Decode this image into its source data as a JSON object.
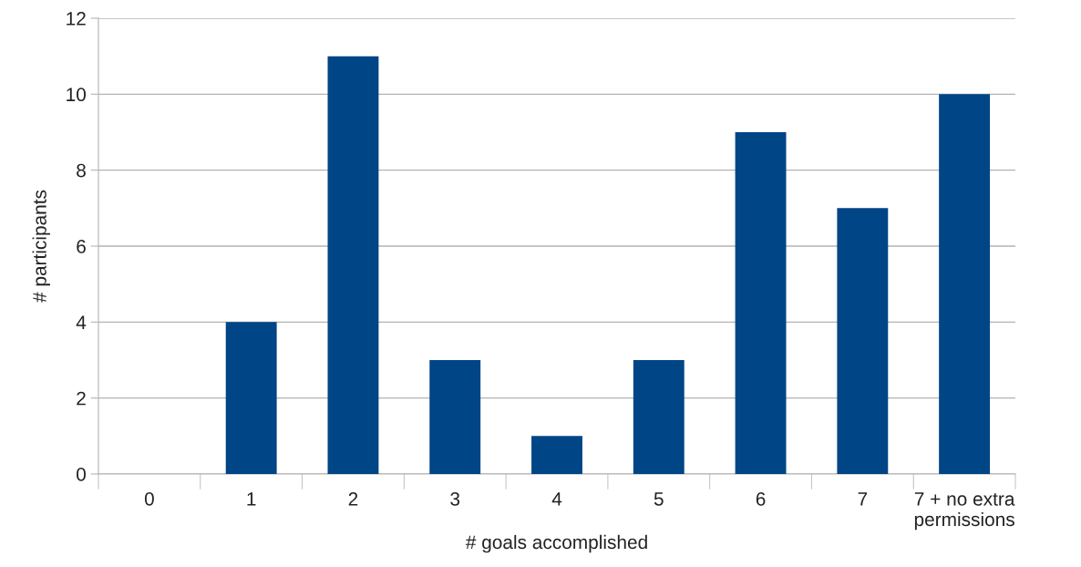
{
  "chart_data": {
    "type": "bar",
    "xlabel": "# goals accomplished",
    "ylabel": "# participants",
    "categories": [
      "0",
      "1",
      "2",
      "3",
      "4",
      "5",
      "6",
      "7",
      "7 + no extra\npermissions"
    ],
    "values": [
      0,
      4,
      11,
      3,
      1,
      3,
      9,
      7,
      10
    ],
    "color": "#004586",
    "ylim": [
      0,
      12
    ],
    "yticks": [
      0,
      2,
      4,
      6,
      8,
      10,
      12
    ],
    "grid": "y"
  }
}
